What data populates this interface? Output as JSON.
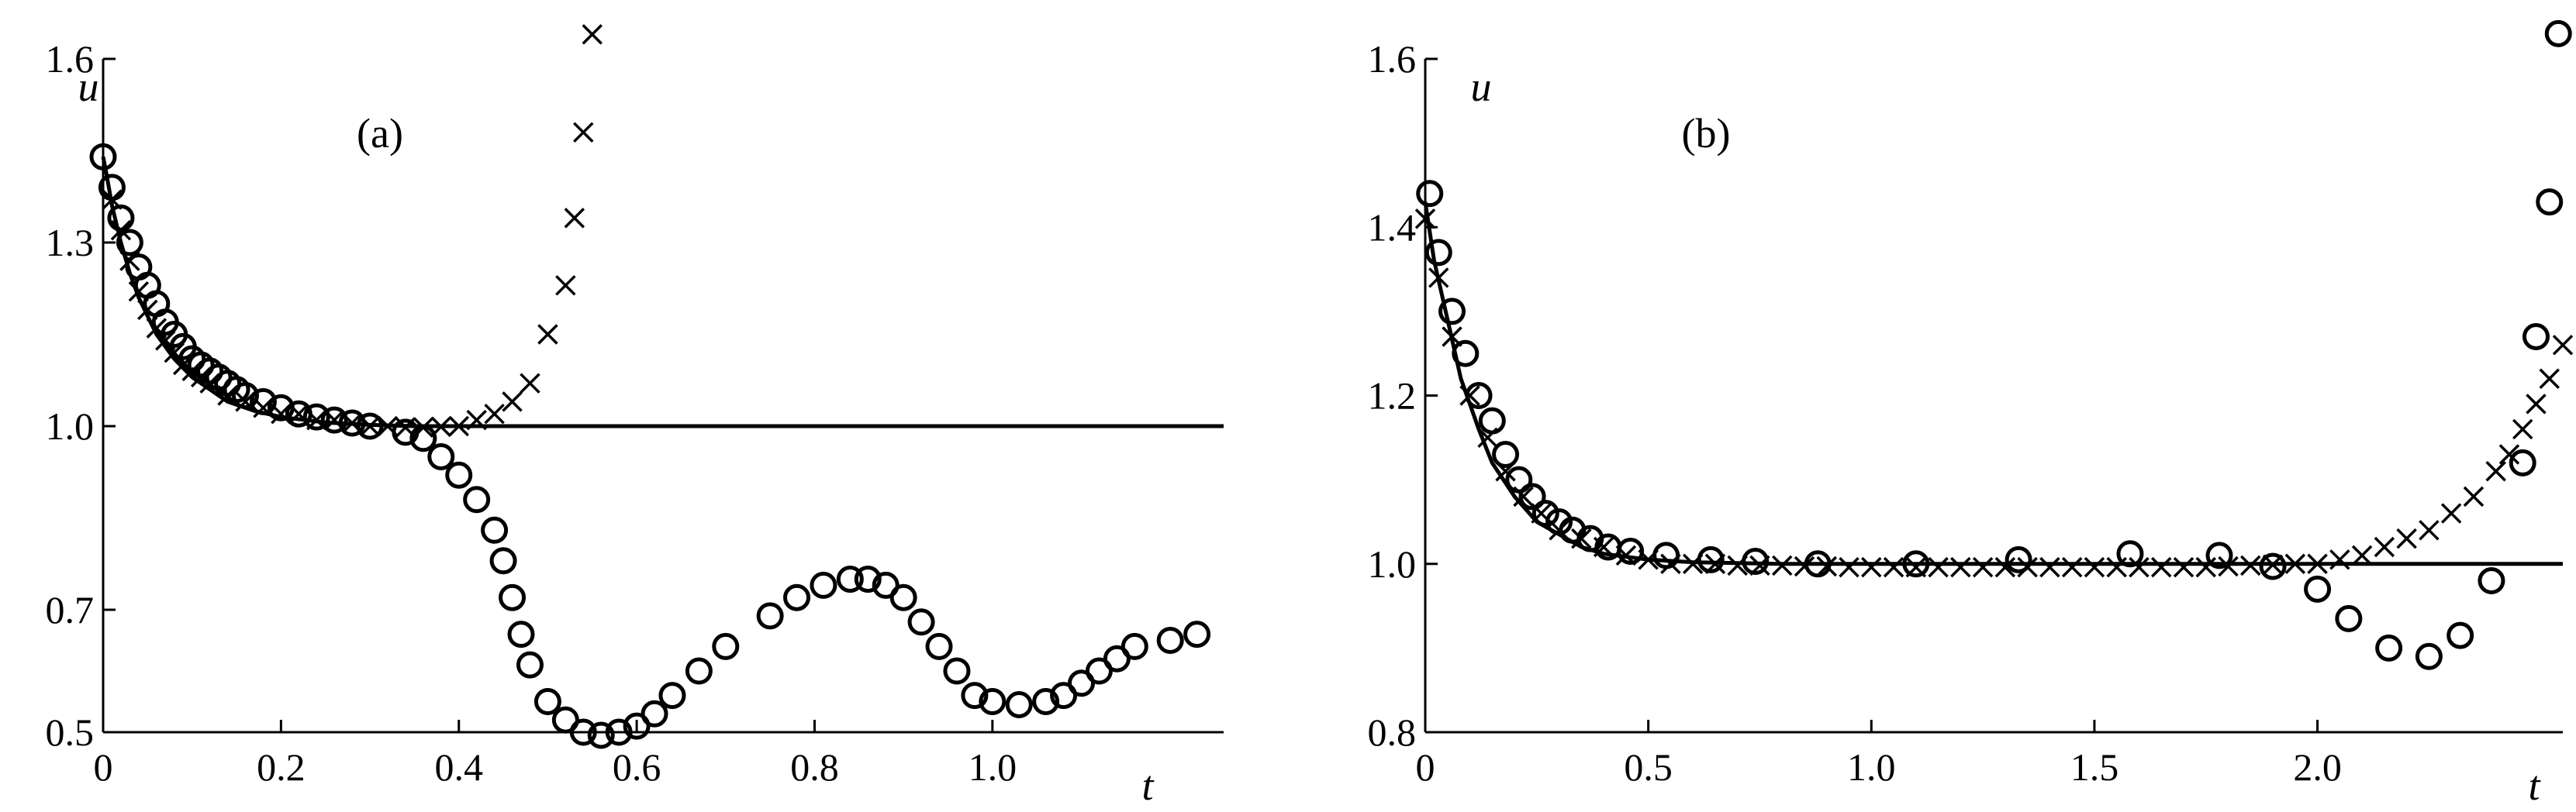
{
  "chart_data": [
    {
      "type": "scatter",
      "panel_label": "(a)",
      "xlabel": "t",
      "ylabel": "u",
      "xlim": [
        0,
        1.26
      ],
      "ylim": [
        0.5,
        1.6
      ],
      "xticks": [
        0,
        0.2,
        0.4,
        0.6,
        0.8,
        1.0
      ],
      "xtick_labels": [
        "0",
        "0.2",
        "0.4",
        "0.6",
        "0.8",
        "1.0"
      ],
      "yticks": [
        0.5,
        0.7,
        1.0,
        1.3,
        1.6
      ],
      "ytick_labels": [
        "0.5",
        "0.7",
        "1.0",
        "1.3",
        "1.6"
      ],
      "grid": false,
      "series": [
        {
          "marker": "line",
          "x": [
            0,
            0.004,
            0.01,
            0.02,
            0.03,
            0.04,
            0.05,
            0.06,
            0.08,
            0.1,
            0.12,
            0.14,
            0.17,
            0.2,
            0.25,
            0.3,
            0.35,
            0.4,
            0.6,
            0.8,
            1.0,
            1.26
          ],
          "y": [
            1.44,
            1.41,
            1.36,
            1.3,
            1.25,
            1.21,
            1.18,
            1.15,
            1.11,
            1.08,
            1.06,
            1.04,
            1.025,
            1.015,
            1.006,
            1.002,
            1.0,
            1.0,
            1.0,
            1.0,
            1.0,
            1.0
          ]
        },
        {
          "marker": "cross",
          "x": [
            0.01,
            0.02,
            0.03,
            0.04,
            0.05,
            0.06,
            0.07,
            0.08,
            0.09,
            0.1,
            0.11,
            0.12,
            0.14,
            0.16,
            0.18,
            0.2,
            0.22,
            0.24,
            0.26,
            0.28,
            0.3,
            0.32,
            0.34,
            0.36,
            0.38,
            0.4,
            0.42,
            0.44,
            0.46,
            0.48,
            0.5,
            0.52,
            0.53,
            0.54,
            0.55
          ],
          "y": [
            1.37,
            1.32,
            1.27,
            1.22,
            1.19,
            1.16,
            1.14,
            1.12,
            1.1,
            1.09,
            1.08,
            1.07,
            1.05,
            1.04,
            1.03,
            1.02,
            1.02,
            1.01,
            1.01,
            1.005,
            1.0,
            1.0,
            0.998,
            0.998,
            0.999,
            1.0,
            1.01,
            1.02,
            1.04,
            1.07,
            1.15,
            1.23,
            1.34,
            1.48,
            1.64
          ]
        },
        {
          "marker": "circle",
          "x": [
            0.0,
            0.01,
            0.02,
            0.03,
            0.04,
            0.05,
            0.06,
            0.07,
            0.08,
            0.09,
            0.1,
            0.11,
            0.12,
            0.13,
            0.14,
            0.15,
            0.16,
            0.18,
            0.2,
            0.22,
            0.24,
            0.26,
            0.28,
            0.3,
            0.34,
            0.36,
            0.38,
            0.4,
            0.42,
            0.44,
            0.45,
            0.46,
            0.47,
            0.48,
            0.5,
            0.52,
            0.54,
            0.56,
            0.58,
            0.6,
            0.62,
            0.64,
            0.67,
            0.7,
            0.75,
            0.78,
            0.81,
            0.84,
            0.86,
            0.88,
            0.9,
            0.92,
            0.94,
            0.96,
            0.98,
            1.0,
            1.03,
            1.06,
            1.08,
            1.1,
            1.12,
            1.14,
            1.16,
            1.2,
            1.23
          ],
          "y": [
            1.44,
            1.39,
            1.34,
            1.3,
            1.26,
            1.23,
            1.2,
            1.17,
            1.15,
            1.13,
            1.11,
            1.1,
            1.09,
            1.08,
            1.07,
            1.06,
            1.05,
            1.04,
            1.03,
            1.02,
            1.015,
            1.01,
            1.005,
            1.0,
            0.99,
            0.98,
            0.95,
            0.92,
            0.88,
            0.83,
            0.78,
            0.72,
            0.66,
            0.61,
            0.55,
            0.52,
            0.5,
            0.495,
            0.5,
            0.51,
            0.53,
            0.56,
            0.6,
            0.64,
            0.69,
            0.72,
            0.74,
            0.75,
            0.75,
            0.74,
            0.72,
            0.68,
            0.64,
            0.6,
            0.56,
            0.55,
            0.545,
            0.55,
            0.56,
            0.58,
            0.6,
            0.62,
            0.64,
            0.65,
            0.66
          ]
        }
      ]
    },
    {
      "type": "scatter",
      "panel_label": "(b)",
      "xlabel": "t",
      "ylabel": "u",
      "xlim": [
        0,
        2.55
      ],
      "ylim": [
        0.8,
        1.6
      ],
      "xticks": [
        0,
        0.5,
        1.0,
        1.5,
        2.0
      ],
      "xtick_labels": [
        "0",
        "0.5",
        "1.0",
        "1.5",
        "2.0"
      ],
      "yticks": [
        0.8,
        1.0,
        1.2,
        1.4,
        1.6
      ],
      "ytick_labels": [
        "0.8",
        "1.0",
        "1.2",
        "1.4",
        "1.6"
      ],
      "grid": false,
      "series": [
        {
          "marker": "line",
          "x": [
            0,
            0.02,
            0.05,
            0.08,
            0.1,
            0.12,
            0.15,
            0.2,
            0.25,
            0.3,
            0.35,
            0.4,
            0.5,
            0.6,
            0.8,
            1.0,
            1.5,
            2.0,
            2.55
          ],
          "y": [
            1.43,
            1.36,
            1.29,
            1.22,
            1.19,
            1.16,
            1.12,
            1.08,
            1.05,
            1.035,
            1.02,
            1.012,
            1.005,
            1.002,
            1.0,
            1.0,
            1.0,
            1.0,
            1.0
          ]
        },
        {
          "marker": "cross",
          "x": [
            0.0,
            0.03,
            0.06,
            0.1,
            0.14,
            0.18,
            0.22,
            0.26,
            0.3,
            0.35,
            0.4,
            0.45,
            0.5,
            0.55,
            0.6,
            0.65,
            0.7,
            0.75,
            0.8,
            0.85,
            0.9,
            0.95,
            1.0,
            1.05,
            1.1,
            1.15,
            1.2,
            1.25,
            1.3,
            1.35,
            1.4,
            1.45,
            1.5,
            1.55,
            1.6,
            1.65,
            1.7,
            1.75,
            1.8,
            1.85,
            1.9,
            1.95,
            2.0,
            2.05,
            2.1,
            2.15,
            2.2,
            2.25,
            2.3,
            2.35,
            2.4,
            2.43,
            2.46,
            2.49,
            2.52,
            2.55
          ],
          "y": [
            1.41,
            1.34,
            1.27,
            1.2,
            1.15,
            1.11,
            1.08,
            1.06,
            1.04,
            1.03,
            1.02,
            1.01,
            1.005,
            1.0,
            1.0,
            1.0,
            0.998,
            0.998,
            0.998,
            0.997,
            0.997,
            0.996,
            0.996,
            0.996,
            0.996,
            0.996,
            0.996,
            0.996,
            0.996,
            0.996,
            0.996,
            0.996,
            0.996,
            0.996,
            0.996,
            0.996,
            0.996,
            0.996,
            0.997,
            0.998,
            0.999,
            1.0,
            1.0,
            1.005,
            1.01,
            1.02,
            1.03,
            1.04,
            1.06,
            1.08,
            1.11,
            1.13,
            1.16,
            1.19,
            1.22,
            1.26
          ]
        },
        {
          "marker": "circle",
          "x": [
            0.01,
            0.03,
            0.06,
            0.09,
            0.12,
            0.15,
            0.18,
            0.21,
            0.24,
            0.27,
            0.3,
            0.33,
            0.37,
            0.41,
            0.46,
            0.54,
            0.64,
            0.74,
            0.88,
            1.1,
            1.33,
            1.58,
            1.78,
            1.9,
            2.0,
            2.07,
            2.16,
            2.25,
            2.32,
            2.39,
            2.46,
            2.49,
            2.52,
            2.54
          ],
          "y": [
            1.44,
            1.37,
            1.3,
            1.25,
            1.2,
            1.17,
            1.13,
            1.1,
            1.08,
            1.06,
            1.05,
            1.04,
            1.03,
            1.02,
            1.015,
            1.01,
            1.005,
            1.003,
            1.0,
            1.0,
            1.005,
            1.012,
            1.01,
            0.997,
            0.97,
            0.935,
            0.9,
            0.89,
            0.915,
            0.98,
            1.12,
            1.27,
            1.43,
            1.63
          ]
        }
      ]
    }
  ]
}
